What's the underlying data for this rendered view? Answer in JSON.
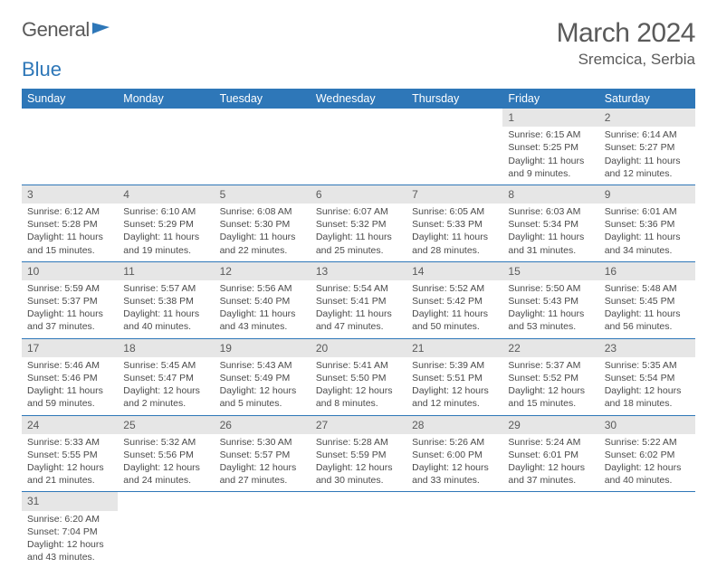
{
  "logo": {
    "text_a": "General",
    "text_b": "Blue"
  },
  "header": {
    "month_title": "March 2024",
    "location": "Sremcica, Serbia"
  },
  "colors": {
    "accent": "#2e77b8",
    "text": "#5a5a5a",
    "day_bg": "#e6e6e6",
    "bg": "#ffffff"
  },
  "weekdays": [
    "Sunday",
    "Monday",
    "Tuesday",
    "Wednesday",
    "Thursday",
    "Friday",
    "Saturday"
  ],
  "days": {
    "1": {
      "sunrise": "6:15 AM",
      "sunset": "5:25 PM",
      "daylight": "11 hours and 9 minutes."
    },
    "2": {
      "sunrise": "6:14 AM",
      "sunset": "5:27 PM",
      "daylight": "11 hours and 12 minutes."
    },
    "3": {
      "sunrise": "6:12 AM",
      "sunset": "5:28 PM",
      "daylight": "11 hours and 15 minutes."
    },
    "4": {
      "sunrise": "6:10 AM",
      "sunset": "5:29 PM",
      "daylight": "11 hours and 19 minutes."
    },
    "5": {
      "sunrise": "6:08 AM",
      "sunset": "5:30 PM",
      "daylight": "11 hours and 22 minutes."
    },
    "6": {
      "sunrise": "6:07 AM",
      "sunset": "5:32 PM",
      "daylight": "11 hours and 25 minutes."
    },
    "7": {
      "sunrise": "6:05 AM",
      "sunset": "5:33 PM",
      "daylight": "11 hours and 28 minutes."
    },
    "8": {
      "sunrise": "6:03 AM",
      "sunset": "5:34 PM",
      "daylight": "11 hours and 31 minutes."
    },
    "9": {
      "sunrise": "6:01 AM",
      "sunset": "5:36 PM",
      "daylight": "11 hours and 34 minutes."
    },
    "10": {
      "sunrise": "5:59 AM",
      "sunset": "5:37 PM",
      "daylight": "11 hours and 37 minutes."
    },
    "11": {
      "sunrise": "5:57 AM",
      "sunset": "5:38 PM",
      "daylight": "11 hours and 40 minutes."
    },
    "12": {
      "sunrise": "5:56 AM",
      "sunset": "5:40 PM",
      "daylight": "11 hours and 43 minutes."
    },
    "13": {
      "sunrise": "5:54 AM",
      "sunset": "5:41 PM",
      "daylight": "11 hours and 47 minutes."
    },
    "14": {
      "sunrise": "5:52 AM",
      "sunset": "5:42 PM",
      "daylight": "11 hours and 50 minutes."
    },
    "15": {
      "sunrise": "5:50 AM",
      "sunset": "5:43 PM",
      "daylight": "11 hours and 53 minutes."
    },
    "16": {
      "sunrise": "5:48 AM",
      "sunset": "5:45 PM",
      "daylight": "11 hours and 56 minutes."
    },
    "17": {
      "sunrise": "5:46 AM",
      "sunset": "5:46 PM",
      "daylight": "11 hours and 59 minutes."
    },
    "18": {
      "sunrise": "5:45 AM",
      "sunset": "5:47 PM",
      "daylight": "12 hours and 2 minutes."
    },
    "19": {
      "sunrise": "5:43 AM",
      "sunset": "5:49 PM",
      "daylight": "12 hours and 5 minutes."
    },
    "20": {
      "sunrise": "5:41 AM",
      "sunset": "5:50 PM",
      "daylight": "12 hours and 8 minutes."
    },
    "21": {
      "sunrise": "5:39 AM",
      "sunset": "5:51 PM",
      "daylight": "12 hours and 12 minutes."
    },
    "22": {
      "sunrise": "5:37 AM",
      "sunset": "5:52 PM",
      "daylight": "12 hours and 15 minutes."
    },
    "23": {
      "sunrise": "5:35 AM",
      "sunset": "5:54 PM",
      "daylight": "12 hours and 18 minutes."
    },
    "24": {
      "sunrise": "5:33 AM",
      "sunset": "5:55 PM",
      "daylight": "12 hours and 21 minutes."
    },
    "25": {
      "sunrise": "5:32 AM",
      "sunset": "5:56 PM",
      "daylight": "12 hours and 24 minutes."
    },
    "26": {
      "sunrise": "5:30 AM",
      "sunset": "5:57 PM",
      "daylight": "12 hours and 27 minutes."
    },
    "27": {
      "sunrise": "5:28 AM",
      "sunset": "5:59 PM",
      "daylight": "12 hours and 30 minutes."
    },
    "28": {
      "sunrise": "5:26 AM",
      "sunset": "6:00 PM",
      "daylight": "12 hours and 33 minutes."
    },
    "29": {
      "sunrise": "5:24 AM",
      "sunset": "6:01 PM",
      "daylight": "12 hours and 37 minutes."
    },
    "30": {
      "sunrise": "5:22 AM",
      "sunset": "6:02 PM",
      "daylight": "12 hours and 40 minutes."
    },
    "31": {
      "sunrise": "6:20 AM",
      "sunset": "7:04 PM",
      "daylight": "12 hours and 43 minutes."
    }
  },
  "grid": [
    [
      null,
      null,
      null,
      null,
      null,
      "1",
      "2"
    ],
    [
      "3",
      "4",
      "5",
      "6",
      "7",
      "8",
      "9"
    ],
    [
      "10",
      "11",
      "12",
      "13",
      "14",
      "15",
      "16"
    ],
    [
      "17",
      "18",
      "19",
      "20",
      "21",
      "22",
      "23"
    ],
    [
      "24",
      "25",
      "26",
      "27",
      "28",
      "29",
      "30"
    ],
    [
      "31",
      null,
      null,
      null,
      null,
      null,
      null
    ]
  ],
  "labels": {
    "sunrise": "Sunrise: ",
    "sunset": "Sunset: ",
    "daylight": "Daylight: "
  }
}
